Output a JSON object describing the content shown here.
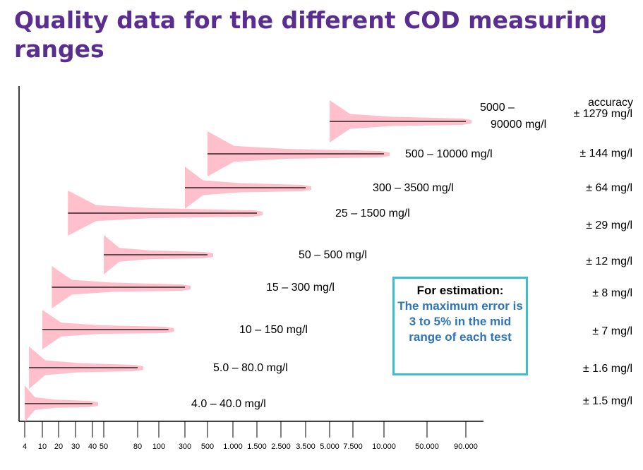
{
  "title": "Quality data for the different COD measuring ranges",
  "accuracy_header": "accuracy",
  "note": {
    "title": "For estimation:",
    "body": "The maximum error is 3 to 5% in the mid range of each test"
  },
  "colors": {
    "title": "#5a2d91",
    "band": "#ffc0cb",
    "note_border": "#3bbfd0",
    "note_text": "#2e75b6"
  },
  "chart_data": {
    "type": "range-bands",
    "x_ticks": [
      "4",
      "10",
      "20",
      "30",
      "40",
      "50",
      "80",
      "100",
      "300",
      "500",
      "1.000",
      "1.500",
      "2.500",
      "3.500",
      "5.000",
      "7.500",
      "10.000",
      "50.000",
      "90.000"
    ],
    "series": [
      {
        "range_label": "5000 –\n90000 mg/l",
        "from": 5000,
        "to": 90000,
        "accuracy": "± 1279 mg/l"
      },
      {
        "range_label": "500 – 10000 mg/l",
        "from": 500,
        "to": 10000,
        "accuracy": "± 144 mg/l"
      },
      {
        "range_label": "300 – 3500 mg/l",
        "from": 300,
        "to": 3500,
        "accuracy": "± 64 mg/l"
      },
      {
        "range_label": "25 – 1500 mg/l",
        "from": 25,
        "to": 1500,
        "accuracy": "± 29 mg/l"
      },
      {
        "range_label": "50 – 500 mg/l",
        "from": 50,
        "to": 500,
        "accuracy": "± 12 mg/l"
      },
      {
        "range_label": "15 – 300 mg/l",
        "from": 15,
        "to": 300,
        "accuracy": "± 8 mg/l"
      },
      {
        "range_label": "10 – 150 mg/l",
        "from": 10,
        "to": 150,
        "accuracy": "± 7 mg/l"
      },
      {
        "range_label": "5.0 – 80.0  mg/l",
        "from": 5.0,
        "to": 80.0,
        "accuracy": "± 1.6 mg/l"
      },
      {
        "range_label": "4.0 – 40.0 mg/l",
        "from": 4.0,
        "to": 40.0,
        "accuracy": "± 1.5 mg/l"
      }
    ]
  }
}
